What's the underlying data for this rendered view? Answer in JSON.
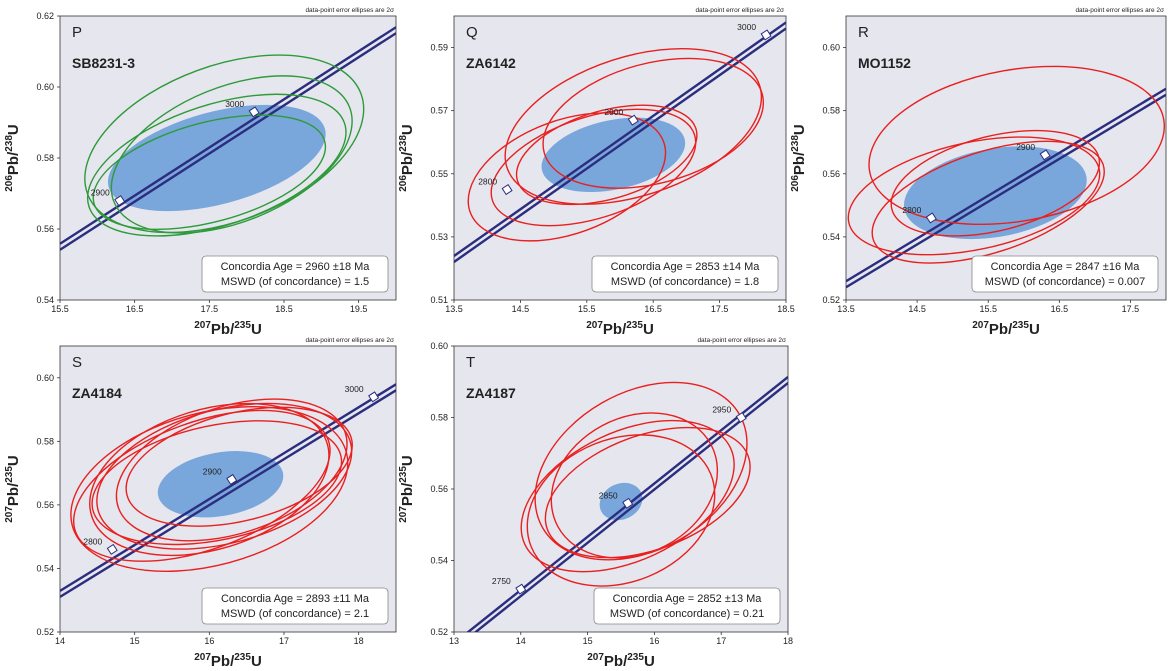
{
  "colors": {
    "plot_bg": "#e6e6ee",
    "concordia": "#2b2d7e",
    "mean_ellipse": "#6d9fd8",
    "green": "#2e9a3a",
    "red": "#e8201f",
    "box_border": "#888888"
  },
  "chart_data": [
    {
      "type": "scatter",
      "panel": "P",
      "sample": "SB8231-3",
      "note": "data-point error ellipses are 2σ",
      "xlabel": {
        "pre": "207",
        "mid": "Pb/",
        "sup2": "235",
        "post": "U"
      },
      "ylabel": {
        "pre": "206",
        "mid": "Pb/",
        "sup2": "238",
        "post": "U"
      },
      "xlim": [
        15.5,
        20.0
      ],
      "ylim": [
        0.54,
        0.62
      ],
      "xticks": [
        15.5,
        16.5,
        17.5,
        18.5,
        19.5
      ],
      "yticks": [
        0.54,
        0.56,
        0.58,
        0.6,
        0.62
      ],
      "concordia_ages": [
        {
          "label": "2900",
          "x": 16.3,
          "y": 0.568
        },
        {
          "label": "3000",
          "x": 18.1,
          "y": 0.593
        }
      ],
      "concordia_line": [
        [
          15.5,
          0.555
        ],
        [
          20.0,
          0.616
        ]
      ],
      "mean_ellipse": {
        "cx": 17.6,
        "cy": 0.58,
        "rx": 1.5,
        "ry": 0.013,
        "angle": 15
      },
      "ellipse_color": "green",
      "ellipses": [
        {
          "cx": 17.7,
          "cy": 0.584,
          "rx": 1.95,
          "ry": 0.022,
          "angle": 20
        },
        {
          "cx": 17.6,
          "cy": 0.578,
          "rx": 1.8,
          "ry": 0.017,
          "angle": 18
        },
        {
          "cx": 17.8,
          "cy": 0.581,
          "rx": 1.7,
          "ry": 0.019,
          "angle": 22
        },
        {
          "cx": 17.5,
          "cy": 0.576,
          "rx": 1.6,
          "ry": 0.014,
          "angle": 15
        }
      ],
      "result": {
        "age": "Concordia Age = 2960 ±18 Ma",
        "mswd": "MSWD (of concordance) = 1.5"
      }
    },
    {
      "type": "scatter",
      "panel": "Q",
      "sample": "ZA6142",
      "note": "data-point error ellipses are 2σ",
      "xlabel": {
        "pre": "207",
        "mid": "Pb/",
        "sup2": "235",
        "post": "U"
      },
      "ylabel": {
        "pre": "206",
        "mid": "Pb/",
        "sup2": "238",
        "post": "U"
      },
      "xlim": [
        13.5,
        18.5
      ],
      "ylim": [
        0.51,
        0.6
      ],
      "xticks": [
        13.5,
        14.5,
        15.5,
        16.5,
        17.5,
        18.5
      ],
      "yticks": [
        0.51,
        0.53,
        0.55,
        0.57,
        0.59
      ],
      "concordia_ages": [
        {
          "label": "2800",
          "x": 14.3,
          "y": 0.545
        },
        {
          "label": "2900",
          "x": 16.2,
          "y": 0.567
        },
        {
          "label": "3000",
          "x": 18.2,
          "y": 0.594
        }
      ],
      "concordia_line": [
        [
          13.5,
          0.523
        ],
        [
          18.5,
          0.597
        ]
      ],
      "mean_ellipse": {
        "cx": 15.9,
        "cy": 0.556,
        "rx": 1.1,
        "ry": 0.011,
        "angle": 12
      },
      "ellipse_color": "red",
      "ellipses": [
        {
          "cx": 16.2,
          "cy": 0.565,
          "rx": 2.0,
          "ry": 0.022,
          "angle": 18
        },
        {
          "cx": 16.5,
          "cy": 0.566,
          "rx": 1.7,
          "ry": 0.019,
          "angle": 15
        },
        {
          "cx": 15.6,
          "cy": 0.552,
          "rx": 1.6,
          "ry": 0.016,
          "angle": 18
        },
        {
          "cx": 15.2,
          "cy": 0.549,
          "rx": 1.55,
          "ry": 0.018,
          "angle": 20
        },
        {
          "cx": 15.8,
          "cy": 0.556,
          "rx": 1.4,
          "ry": 0.014,
          "angle": 16
        }
      ],
      "result": {
        "age": "Concordia Age = 2853 ±14 Ma",
        "mswd": "MSWD (of concordance) = 1.8"
      }
    },
    {
      "type": "scatter",
      "panel": "R",
      "sample": "MO1152",
      "note": "data-point error ellipses are 2σ",
      "xlabel": {
        "pre": "207",
        "mid": "Pb/",
        "sup2": "235",
        "post": "U"
      },
      "ylabel": {
        "pre": "206",
        "mid": "Pb/",
        "sup2": "238",
        "post": "U"
      },
      "xlim": [
        13.5,
        18.0
      ],
      "ylim": [
        0.52,
        0.61
      ],
      "xticks": [
        13.5,
        14.5,
        15.5,
        16.5,
        17.5
      ],
      "yticks": [
        0.52,
        0.54,
        0.56,
        0.58,
        0.6
      ],
      "concordia_ages": [
        {
          "label": "2800",
          "x": 14.7,
          "y": 0.546
        },
        {
          "label": "2900",
          "x": 16.3,
          "y": 0.566
        }
      ],
      "concordia_line": [
        [
          13.5,
          0.525
        ],
        [
          18.0,
          0.586
        ]
      ],
      "mean_ellipse": {
        "cx": 15.6,
        "cy": 0.554,
        "rx": 1.3,
        "ry": 0.014,
        "angle": 10
      },
      "ellipse_color": "red",
      "ellipses": [
        {
          "cx": 15.9,
          "cy": 0.569,
          "rx": 2.1,
          "ry": 0.024,
          "angle": 10
        },
        {
          "cx": 15.3,
          "cy": 0.553,
          "rx": 1.8,
          "ry": 0.017,
          "angle": 12
        },
        {
          "cx": 15.5,
          "cy": 0.551,
          "rx": 1.7,
          "ry": 0.016,
          "angle": 18
        },
        {
          "cx": 15.6,
          "cy": 0.557,
          "rx": 1.5,
          "ry": 0.015,
          "angle": 14
        }
      ],
      "result": {
        "age": "Concordia Age = 2847 ±16 Ma",
        "mswd": "MSWD (of concordance) = 0.007"
      }
    },
    {
      "type": "scatter",
      "panel": "S",
      "sample": "ZA4184",
      "note": "data-point error ellipses are 2σ",
      "xlabel": {
        "pre": "207",
        "mid": "Pb/",
        "sup2": "235",
        "post": "U"
      },
      "ylabel": {
        "pre": "207",
        "mid": "Pb/",
        "sup2": "235",
        "post": "U"
      },
      "xlim": [
        14.0,
        18.5
      ],
      "ylim": [
        0.52,
        0.61
      ],
      "xticks": [
        14,
        15,
        16,
        17,
        18
      ],
      "yticks": [
        0.52,
        0.54,
        0.56,
        0.58,
        0.6
      ],
      "concordia_ages": [
        {
          "label": "2800",
          "x": 14.7,
          "y": 0.546
        },
        {
          "label": "2900",
          "x": 16.3,
          "y": 0.568
        },
        {
          "label": "3000",
          "x": 18.2,
          "y": 0.594
        }
      ],
      "concordia_line": [
        [
          14.0,
          0.532
        ],
        [
          18.5,
          0.597
        ]
      ],
      "mean_ellipse": {
        "cx": 16.15,
        "cy": 0.5665,
        "rx": 0.85,
        "ry": 0.01,
        "angle": 10
      },
      "ellipse_color": "red",
      "ellipses": [
        {
          "cx": 16.2,
          "cy": 0.569,
          "rx": 1.75,
          "ry": 0.021,
          "angle": 15
        },
        {
          "cx": 16.0,
          "cy": 0.565,
          "rx": 1.9,
          "ry": 0.024,
          "angle": 15
        },
        {
          "cx": 16.3,
          "cy": 0.571,
          "rx": 1.6,
          "ry": 0.02,
          "angle": 18
        },
        {
          "cx": 16.1,
          "cy": 0.567,
          "rx": 1.7,
          "ry": 0.018,
          "angle": 12
        },
        {
          "cx": 15.9,
          "cy": 0.566,
          "rx": 1.8,
          "ry": 0.02,
          "angle": 20
        },
        {
          "cx": 16.4,
          "cy": 0.572,
          "rx": 1.55,
          "ry": 0.017,
          "angle": 14
        },
        {
          "cx": 16.0,
          "cy": 0.568,
          "rx": 1.65,
          "ry": 0.022,
          "angle": 17
        }
      ],
      "result": {
        "age": "Concordia Age = 2893 ±11 Ma",
        "mswd": "MSWD (of concordance) = 2.1"
      }
    },
    {
      "type": "scatter",
      "panel": "T",
      "sample": "ZA4187",
      "note": "data-point error ellipses are 2σ",
      "xlabel": {
        "pre": "207",
        "mid": "Pb/",
        "sup2": "235",
        "post": "U"
      },
      "ylabel": {
        "pre": "207",
        "mid": "Pb/",
        "sup2": "235",
        "post": "U"
      },
      "xlim": [
        13.0,
        18.0
      ],
      "ylim": [
        0.52,
        0.6
      ],
      "xticks": [
        13,
        14,
        15,
        16,
        17,
        18
      ],
      "yticks": [
        0.52,
        0.54,
        0.56,
        0.58,
        0.6
      ],
      "concordia_ages": [
        {
          "label": "2750",
          "x": 14.0,
          "y": 0.532
        },
        {
          "label": "2850",
          "x": 15.6,
          "y": 0.556
        },
        {
          "label": "2950",
          "x": 17.3,
          "y": 0.58
        }
      ],
      "concordia_line": [
        [
          13.0,
          0.516
        ],
        [
          18.0,
          0.5905
        ]
      ],
      "mean_ellipse": {
        "cx": 15.5,
        "cy": 0.5565,
        "rx": 0.33,
        "ry": 0.005,
        "angle": 25
      },
      "ellipse_color": "red",
      "ellipses": [
        {
          "cx": 15.8,
          "cy": 0.565,
          "rx": 1.7,
          "ry": 0.022,
          "angle": 30
        },
        {
          "cx": 15.6,
          "cy": 0.558,
          "rx": 1.7,
          "ry": 0.018,
          "angle": 25
        },
        {
          "cx": 15.5,
          "cy": 0.554,
          "rx": 1.45,
          "ry": 0.02,
          "angle": 22
        },
        {
          "cx": 15.9,
          "cy": 0.559,
          "rx": 1.6,
          "ry": 0.016,
          "angle": 20
        },
        {
          "cx": 15.7,
          "cy": 0.561,
          "rx": 1.3,
          "ry": 0.019,
          "angle": 28
        }
      ],
      "result": {
        "age": "Concordia Age = 2852 ±13 Ma",
        "mswd": "MSWD (of concordance) = 0.21"
      }
    }
  ]
}
